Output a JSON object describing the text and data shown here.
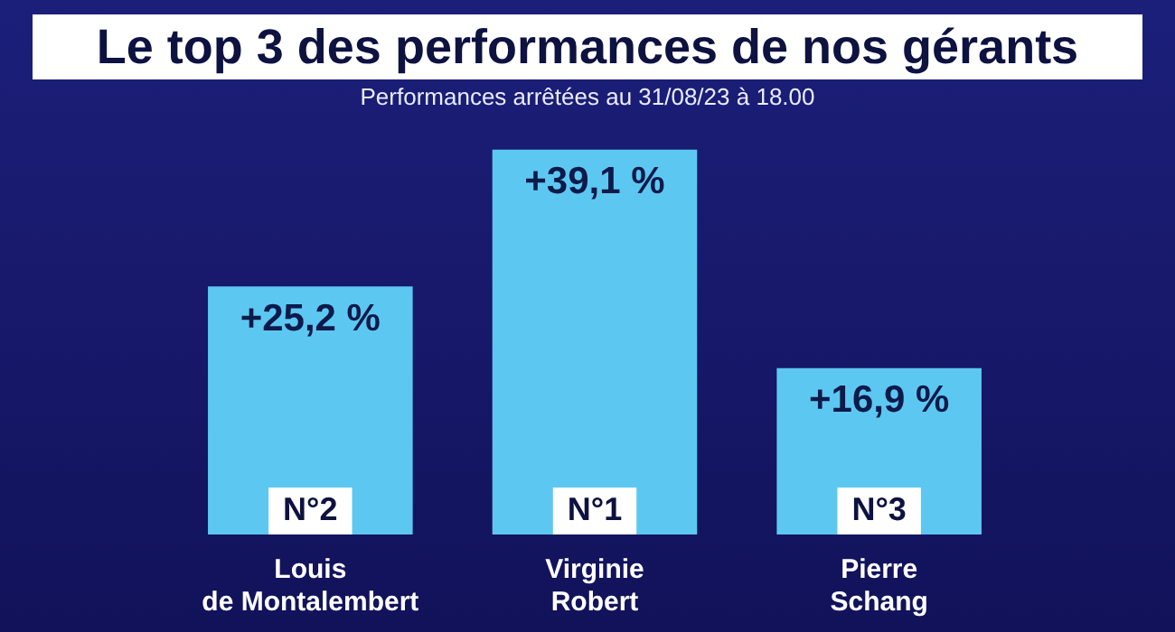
{
  "chart_data": {
    "type": "bar",
    "title": "Le top 3 des performances de nos gérants",
    "subtitle": "Performances arrêtées au 31/08/23 à 18.00",
    "categories": [
      "Louis\nde Montalembert",
      "Virginie\nRobert",
      "Pierre\nSchang"
    ],
    "values": [
      25.2,
      39.1,
      16.9
    ],
    "value_labels": [
      "+25,2 %",
      "+39,1 %",
      "+16,9 %"
    ],
    "color": "#5cc8f2",
    "relative": false,
    "grid": false,
    "legend": false,
    "annotations": [
      {
        "text": "N°2",
        "x": "Louis\nde Montalembert",
        "y": 0
      },
      {
        "text": "N°1",
        "x": "Virginie\nRobert",
        "y": 0
      },
      {
        "text": "N°3",
        "x": "Pierre\nSchang",
        "y": 0
      }
    ]
  }
}
